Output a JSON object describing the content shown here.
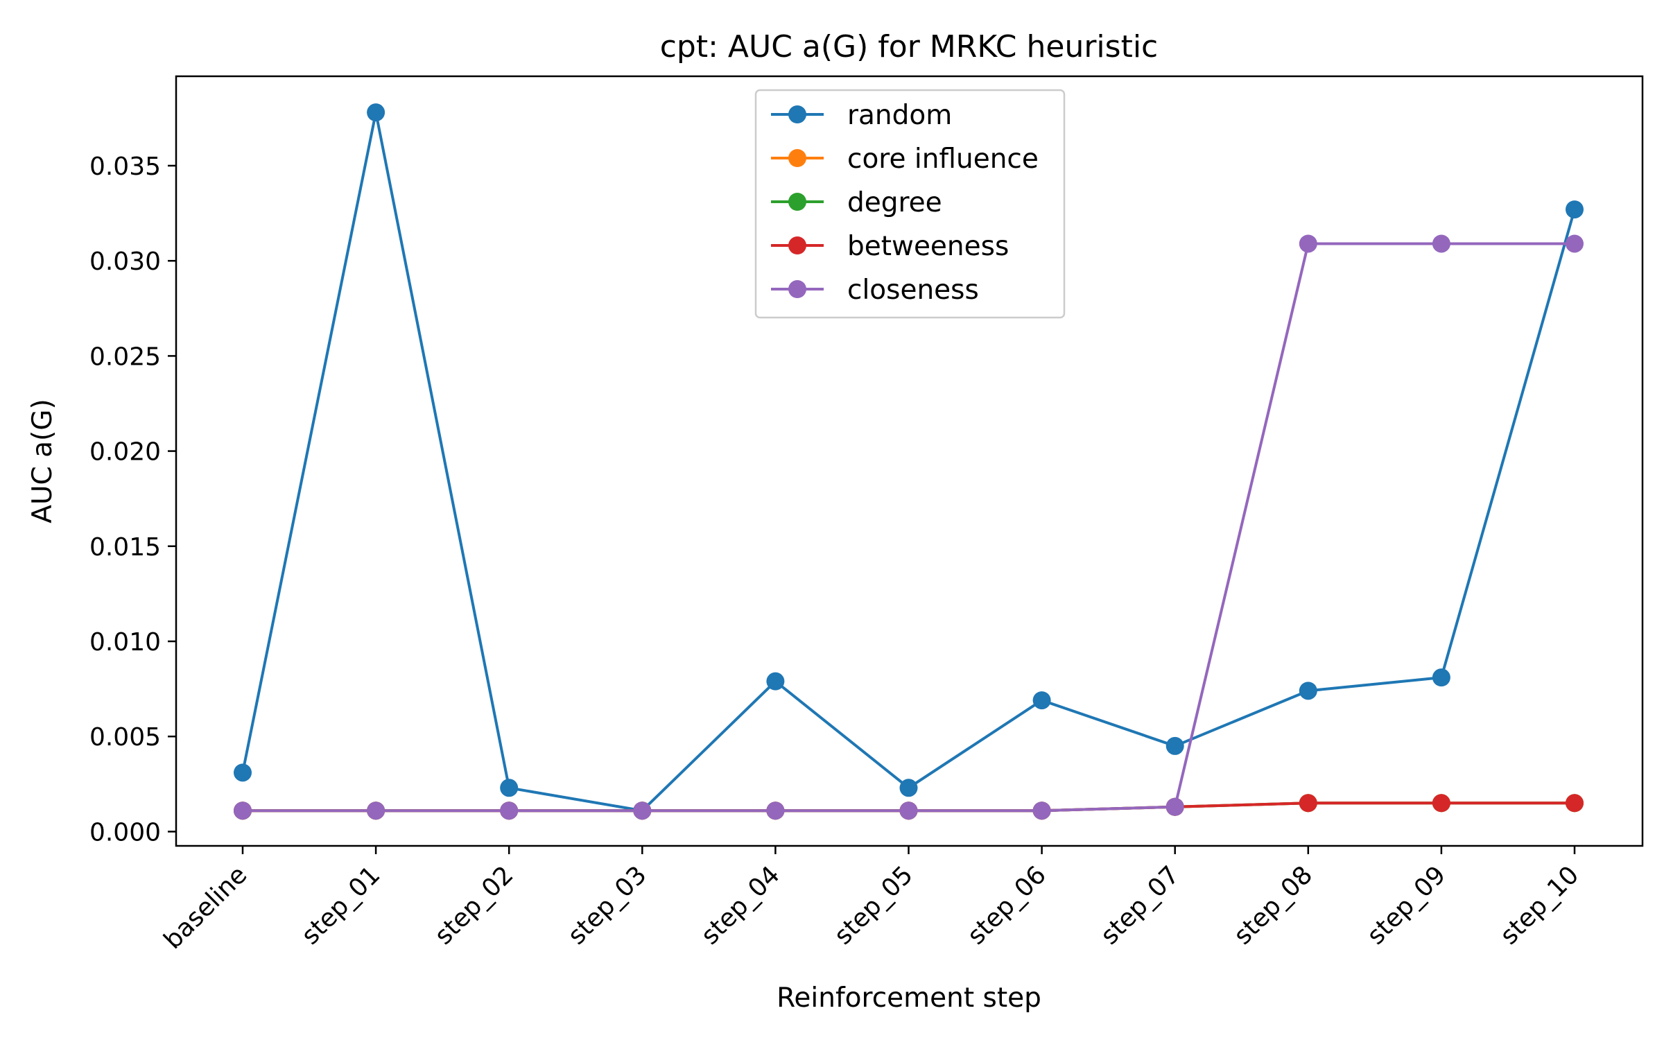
{
  "chart_data": {
    "type": "line",
    "title": "cpt: AUC a(G) for MRKC heuristic",
    "xlabel": "Reinforcement step",
    "ylabel": "AUC a(G)",
    "categories": [
      "baseline",
      "step_01",
      "step_02",
      "step_03",
      "step_04",
      "step_05",
      "step_06",
      "step_07",
      "step_08",
      "step_09",
      "step_10"
    ],
    "ylim": [
      -0.00075,
      0.0397
    ],
    "yticks": [
      "0.000",
      "0.005",
      "0.010",
      "0.015",
      "0.020",
      "0.025",
      "0.030",
      "0.035"
    ],
    "ytick_values": [
      0,
      0.005,
      0.01,
      0.015,
      0.02,
      0.025,
      0.03,
      0.035
    ],
    "grid": false,
    "legend_position": "top-center",
    "series": [
      {
        "name": "random",
        "color": "#1f77b4",
        "values": [
          0.0031,
          0.0378,
          0.0023,
          0.0011,
          0.0079,
          0.0023,
          0.0069,
          0.0045,
          0.0074,
          0.0081,
          0.0327
        ]
      },
      {
        "name": "core influence",
        "color": "#ff7f0e",
        "values": [
          0.0011,
          0.0011,
          0.0011,
          0.0011,
          0.0011,
          0.0011,
          0.0011,
          0.0013,
          0.0015,
          0.0015,
          0.0015
        ]
      },
      {
        "name": "degree",
        "color": "#2ca02c",
        "values": [
          0.0011,
          0.0011,
          0.0011,
          0.0011,
          0.0011,
          0.0011,
          0.0011,
          0.0013,
          0.0015,
          0.0015,
          0.0015
        ]
      },
      {
        "name": "betweeness",
        "color": "#d62728",
        "values": [
          0.0011,
          0.0011,
          0.0011,
          0.0011,
          0.0011,
          0.0011,
          0.0011,
          0.0013,
          0.0015,
          0.0015,
          0.0015
        ]
      },
      {
        "name": "closeness",
        "color": "#9467bd",
        "values": [
          0.0011,
          0.0011,
          0.0011,
          0.0011,
          0.0011,
          0.0011,
          0.0011,
          0.0013,
          0.0309,
          0.0309,
          0.0309
        ]
      }
    ]
  }
}
